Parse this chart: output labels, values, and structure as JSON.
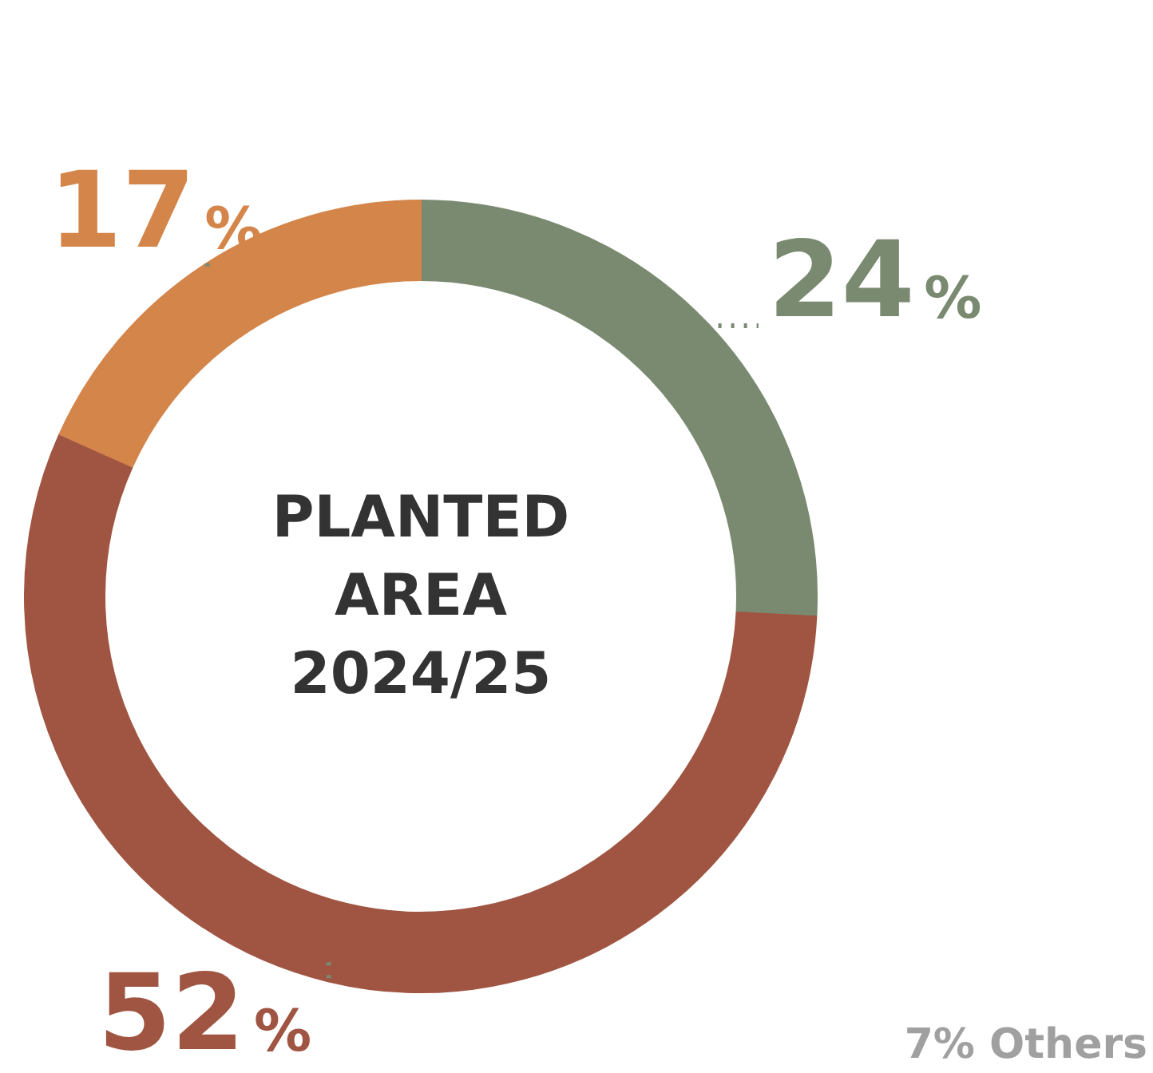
{
  "chart_data": {
    "type": "donut",
    "title": "PLANTED\nAREA\n2024/25",
    "categories": [
      null,
      null,
      null
    ],
    "values": [
      24,
      52,
      17
    ],
    "colors": [
      "#7a8a70",
      "#a05542",
      "#d4854a"
    ],
    "value_labels": [
      "24%",
      "52%",
      "17%"
    ],
    "annotations": [
      "7% Others"
    ]
  }
}
